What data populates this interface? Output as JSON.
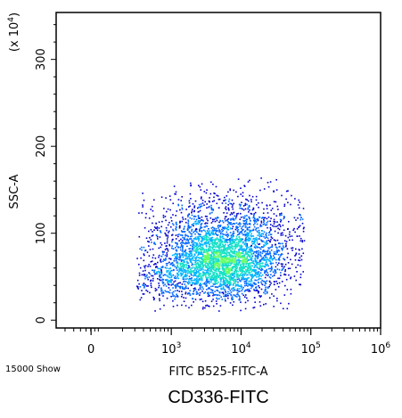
{
  "chart_data": {
    "type": "scatter",
    "title": "CD336-FITC",
    "xlabel": "FITC B525-FITC-A",
    "ylabel": "SSC-A",
    "y_multiplier_prefix": "(x 10",
    "y_multiplier_exp": "4",
    "y_multiplier_suffix": ")",
    "event_count_label": "15000 Show",
    "x_scale": "log",
    "y_scale": "linear",
    "xlim_log10": [
      1.35,
      6.0
    ],
    "ylim": [
      -9,
      354
    ],
    "x_ticks": [
      {
        "label": "0",
        "exp": "",
        "log10": 1.85
      },
      {
        "label": "10",
        "exp": "3",
        "log10": 3
      },
      {
        "label": "10",
        "exp": "4",
        "log10": 4
      },
      {
        "label": "10",
        "exp": "5",
        "log10": 5
      },
      {
        "label": "10",
        "exp": "6",
        "log10": 6
      }
    ],
    "y_ticks": [
      0,
      100,
      200,
      300
    ],
    "density_colors": [
      "#0000cc",
      "#0066ff",
      "#00b4ff",
      "#18e0c8",
      "#66ff66"
    ],
    "density_clusters": [
      {
        "cx_log10": 3.7,
        "cy": 65,
        "sx": 0.42,
        "sy": 20,
        "weight": 0.62
      },
      {
        "cx_log10": 3.6,
        "cy": 105,
        "sx": 0.55,
        "sy": 22,
        "weight": 0.2
      },
      {
        "cx_log10": 4.2,
        "cy": 95,
        "sx": 0.45,
        "sy": 30,
        "weight": 0.12
      },
      {
        "cx_log10": 2.8,
        "cy": 45,
        "sx": 0.35,
        "sy": 15,
        "weight": 0.06
      }
    ]
  }
}
